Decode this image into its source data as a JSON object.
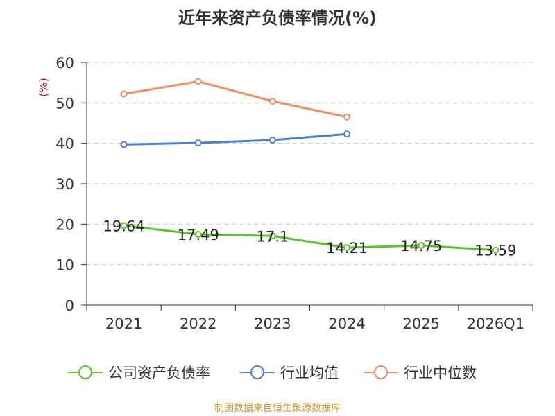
{
  "chart_data": {
    "type": "line",
    "title": "近年来资产负债率情况(%)",
    "ylabel": "(%)",
    "categories": [
      "2021",
      "2022",
      "2023",
      "2024",
      "2025",
      "2026Q1"
    ],
    "ylim": [
      0,
      60
    ],
    "yticks": [
      0,
      10,
      20,
      30,
      40,
      50,
      60
    ],
    "grid": true,
    "legend_position": "bottom",
    "series": [
      {
        "name": "公司资产负债率",
        "color": "#5ac52a",
        "values": [
          19.64,
          17.49,
          17.1,
          14.21,
          14.75,
          13.59
        ],
        "labels": [
          "19.64",
          "17.49",
          "17.1",
          "14.21",
          "14.75",
          "13.59"
        ]
      },
      {
        "name": "行业均值",
        "color": "#4a7fd8",
        "values": [
          39.7,
          40.1,
          40.8,
          42.3,
          null,
          null
        ]
      },
      {
        "name": "行业中位数",
        "color": "#f48c5c",
        "values": [
          52.2,
          55.3,
          50.4,
          46.5,
          null,
          null
        ]
      }
    ]
  },
  "source": "制图数据来自恒生聚源数据库"
}
